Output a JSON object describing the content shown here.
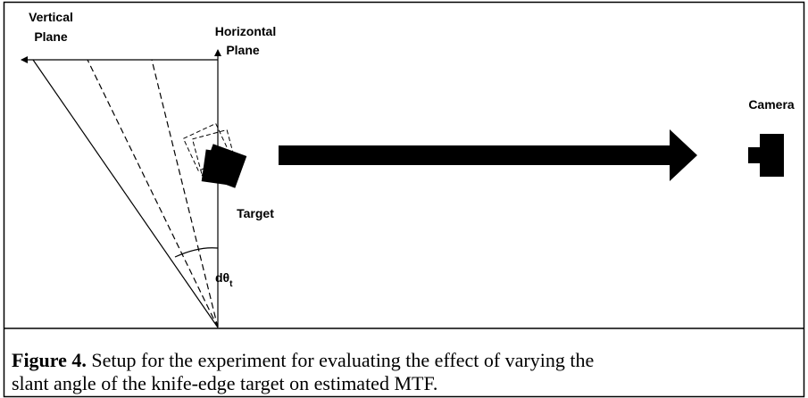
{
  "labels": {
    "vertical_plane": [
      "Vertical",
      "Plane"
    ],
    "horizontal_plane": [
      "Horizontal",
      "Plane"
    ],
    "camera": "Camera",
    "target": "Target",
    "angle": {
      "symbol": "dθ",
      "subscript": "t"
    }
  },
  "caption": {
    "label": "Figure 4.",
    "lines": [
      " Setup for the experiment for evaluating the effect of varying the",
      "slant angle of the knife-edge target on estimated MTF."
    ]
  }
}
